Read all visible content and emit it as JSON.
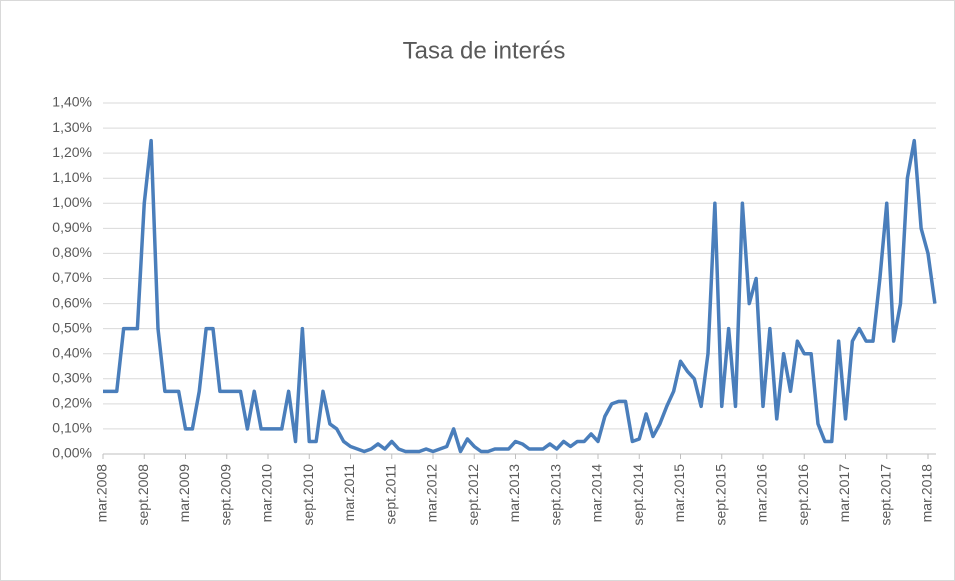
{
  "chart_data": {
    "type": "line",
    "title": "Tasa de interés",
    "categories": [
      "mar.2008",
      null,
      null,
      null,
      null,
      null,
      "sept.2008",
      null,
      null,
      null,
      null,
      null,
      "mar.2009",
      null,
      null,
      null,
      null,
      null,
      "sept.2009",
      null,
      null,
      null,
      null,
      null,
      "mar.2010",
      null,
      null,
      null,
      null,
      null,
      "sept.2010",
      null,
      null,
      null,
      null,
      null,
      "mar.2011",
      null,
      null,
      null,
      null,
      null,
      "sept.2011",
      null,
      null,
      null,
      null,
      null,
      "mar.2012",
      null,
      null,
      null,
      null,
      null,
      "sept.2012",
      null,
      null,
      null,
      null,
      null,
      "mar.2013",
      null,
      null,
      null,
      null,
      null,
      "sept.2013",
      null,
      null,
      null,
      null,
      null,
      "mar.2014",
      null,
      null,
      null,
      null,
      null,
      "sept.2014",
      null,
      null,
      null,
      null,
      null,
      "mar.2015",
      null,
      null,
      null,
      null,
      null,
      "sept.2015",
      null,
      null,
      null,
      null,
      null,
      "mar.2016",
      null,
      null,
      null,
      null,
      null,
      "sept.2016",
      null,
      null,
      null,
      null,
      null,
      "mar.2017",
      null,
      null,
      null,
      null,
      null,
      "sept.2017",
      null,
      null,
      null,
      null,
      null,
      "mar.2018",
      null
    ],
    "values": [
      0.25,
      0.25,
      0.25,
      0.5,
      0.5,
      0.5,
      1.0,
      1.25,
      0.5,
      0.25,
      0.25,
      0.25,
      0.1,
      0.1,
      0.25,
      0.5,
      0.5,
      0.25,
      0.25,
      0.25,
      0.25,
      0.1,
      0.25,
      0.1,
      0.1,
      0.1,
      0.1,
      0.25,
      0.05,
      0.5,
      0.05,
      0.05,
      0.25,
      0.12,
      0.1,
      0.05,
      0.03,
      0.02,
      0.01,
      0.02,
      0.04,
      0.02,
      0.05,
      0.02,
      0.01,
      0.01,
      0.01,
      0.02,
      0.01,
      0.02,
      0.03,
      0.1,
      0.01,
      0.06,
      0.03,
      0.01,
      0.01,
      0.02,
      0.02,
      0.02,
      0.05,
      0.04,
      0.02,
      0.02,
      0.02,
      0.04,
      0.02,
      0.05,
      0.03,
      0.05,
      0.05,
      0.08,
      0.05,
      0.15,
      0.2,
      0.21,
      0.21,
      0.05,
      0.06,
      0.16,
      0.07,
      0.12,
      0.19,
      0.25,
      0.37,
      0.33,
      0.3,
      0.19,
      0.4,
      1.0,
      0.19,
      0.5,
      0.19,
      1.0,
      0.6,
      0.7,
      0.19,
      0.5,
      0.14,
      0.4,
      0.25,
      0.45,
      0.4,
      0.4,
      0.12,
      0.05,
      0.05,
      0.45,
      0.14,
      0.45,
      0.5,
      0.45,
      0.45,
      0.7,
      1.0,
      0.45,
      0.6,
      1.1,
      1.25,
      0.9,
      0.8,
      0.6
    ],
    "color": "#4a7ebb",
    "ylim": [
      0,
      1.4
    ],
    "yticks": [
      {
        "value": 0,
        "label": "0,00%"
      },
      {
        "value": 0.1,
        "label": "0,10%"
      },
      {
        "value": 0.2,
        "label": "0,20%"
      },
      {
        "value": 0.3,
        "label": "0,30%"
      },
      {
        "value": 0.4,
        "label": "0,40%"
      },
      {
        "value": 0.5,
        "label": "0,50%"
      },
      {
        "value": 0.6,
        "label": "0,60%"
      },
      {
        "value": 0.7,
        "label": "0,70%"
      },
      {
        "value": 0.8,
        "label": "0,80%"
      },
      {
        "value": 0.9,
        "label": "0,90%"
      },
      {
        "value": 1.0,
        "label": "1,00%"
      },
      {
        "value": 1.1,
        "label": "1,10%"
      },
      {
        "value": 1.2,
        "label": "1,20%"
      },
      {
        "value": 1.3,
        "label": "1,30%"
      },
      {
        "value": 1.4,
        "label": "1,40%"
      }
    ],
    "grid": true
  }
}
